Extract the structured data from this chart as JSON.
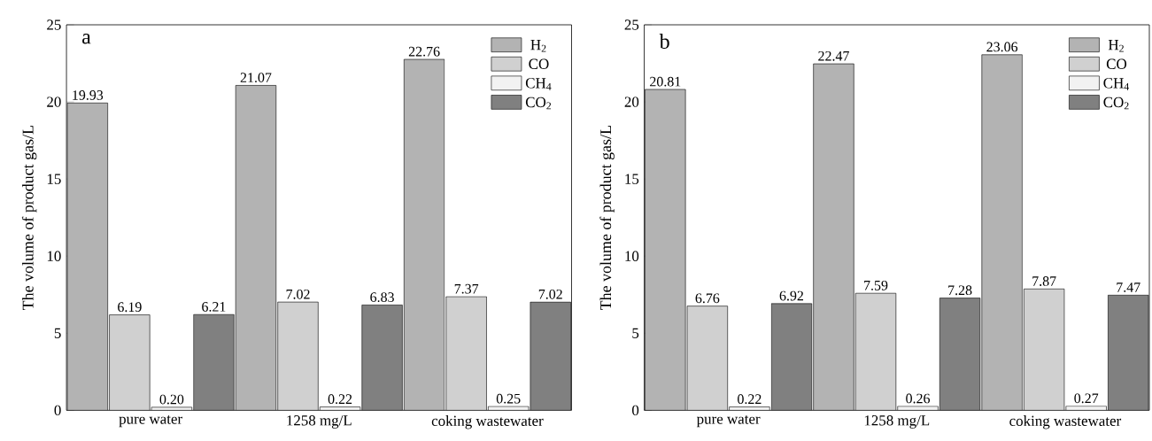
{
  "chart_data": [
    {
      "type": "bar",
      "ylabel": "The volume of product gas/L",
      "annotations": [
        "a"
      ],
      "categories": [
        "pure water",
        "1258 mg/L",
        "coking wastewater"
      ],
      "ylim": [
        0,
        25
      ],
      "yticks": [
        0,
        5,
        10,
        15,
        20,
        25
      ],
      "legend": "top right",
      "series": [
        {
          "name": "H$_{2}$",
          "color": "#b3b3b3",
          "values": [
            19.93,
            21.07,
            22.76
          ],
          "value_labels": [
            "19.93",
            "21.07",
            "22.76"
          ]
        },
        {
          "name": "CO",
          "color": "#d0d0d0",
          "values": [
            6.19,
            7.02,
            7.37
          ],
          "value_labels": [
            "6.19",
            "7.02",
            "7.37"
          ]
        },
        {
          "name": "CH$_{4}$",
          "color": "#f2f2f2",
          "values": [
            0.2,
            0.22,
            0.25
          ],
          "value_labels": [
            "0.20",
            "0.22",
            "0.25"
          ]
        },
        {
          "name": "CO$_{2}$",
          "color": "#808080",
          "values": [
            6.21,
            6.83,
            7.02
          ],
          "value_labels": [
            "6.21",
            "6.83",
            "7.02"
          ]
        }
      ]
    },
    {
      "type": "bar",
      "ylabel": "The volume of product gas/L",
      "annotations": [
        "b"
      ],
      "categories": [
        "pure water",
        "1258 mg/L",
        "coking wastewater"
      ],
      "ylim": [
        0,
        25
      ],
      "yticks": [
        0,
        5,
        10,
        15,
        20,
        25
      ],
      "legend": "top right",
      "series": [
        {
          "name": "H$_{2}$",
          "color": "#b3b3b3",
          "values": [
            20.81,
            22.47,
            23.06
          ],
          "value_labels": [
            "20.81",
            "22.47",
            "23.06"
          ]
        },
        {
          "name": "CO",
          "color": "#d0d0d0",
          "values": [
            6.76,
            7.59,
            7.87
          ],
          "value_labels": [
            "6.76",
            "7.59",
            "7.87"
          ]
        },
        {
          "name": "CH$_{4}$",
          "color": "#f2f2f2",
          "values": [
            0.22,
            0.26,
            0.27
          ],
          "value_labels": [
            "0.22",
            "0.26",
            "0.27"
          ]
        },
        {
          "name": "CO$_{2}$",
          "color": "#808080",
          "values": [
            6.92,
            7.28,
            7.47
          ],
          "value_labels": [
            "6.92",
            "7.28",
            "7.47"
          ]
        }
      ]
    }
  ]
}
